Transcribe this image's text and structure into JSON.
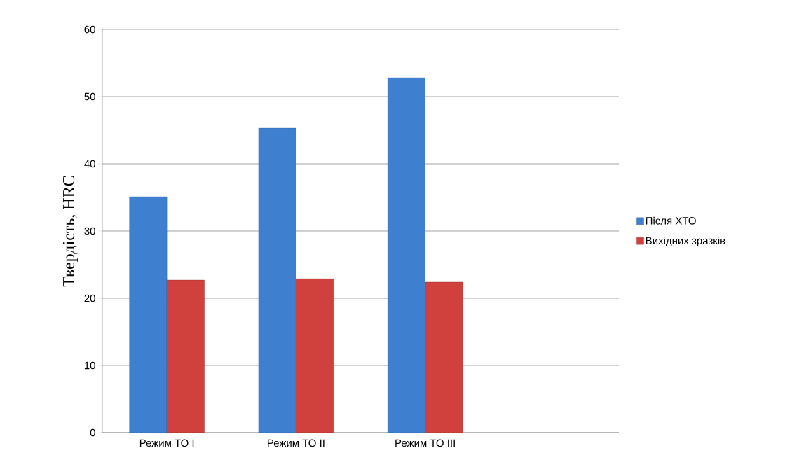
{
  "chart_data": {
    "type": "bar",
    "ylabel": "Твердість, HRC",
    "categories": [
      "Режим ТО I",
      "Режим ТО II",
      "Режим ТО III",
      null
    ],
    "series": [
      {
        "name": "Після ХТО",
        "color": "#3f7fd0",
        "values": [
          35.1,
          45.3,
          52.8,
          null
        ]
      },
      {
        "name": "Вихідних зразків",
        "color": "#d0403c",
        "values": [
          22.7,
          22.9,
          22.4,
          null
        ]
      }
    ],
    "ylim": [
      0,
      60
    ],
    "yticks": [
      0,
      10,
      20,
      30,
      40,
      50,
      60
    ],
    "grid": "y",
    "legend": "right"
  }
}
